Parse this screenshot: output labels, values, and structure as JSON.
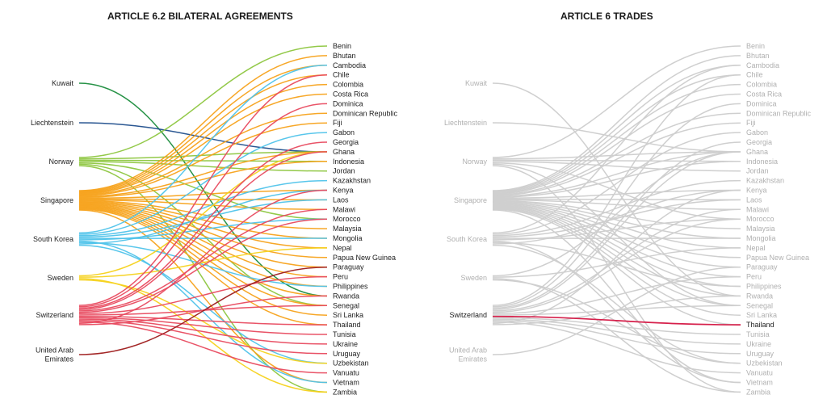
{
  "left_panel": {
    "title": "ARTICLE 6.2 BILATERAL AGREEMENTS"
  },
  "right_panel": {
    "title": "ARTICLE 6 TRADES",
    "highlight": {
      "source": "Switzerland",
      "destination": "Thailand",
      "color": "#d6204b"
    },
    "inactive_color": "#cfcfcf",
    "inactive_label_color": "#b0b0b0"
  },
  "sources": [
    {
      "name": "Kuwait",
      "lines": [
        "Kuwait"
      ],
      "color": "#1a8c3c"
    },
    {
      "name": "Liechtenstein",
      "lines": [
        "Liechtenstein"
      ],
      "color": "#1f4e8c"
    },
    {
      "name": "Norway",
      "lines": [
        "Norway"
      ],
      "color": "#8dc63f"
    },
    {
      "name": "Singapore",
      "lines": [
        "Singapore"
      ],
      "color": "#f7a21b"
    },
    {
      "name": "South Korea",
      "lines": [
        "South Korea"
      ],
      "color": "#4fc3ea"
    },
    {
      "name": "Sweden",
      "lines": [
        "Sweden"
      ],
      "color": "#f5d21c"
    },
    {
      "name": "Switzerland",
      "lines": [
        "Switzerland"
      ],
      "color": "#e84a5f"
    },
    {
      "name": "United Arab Emirates",
      "lines": [
        "United Arab",
        "Emirates"
      ],
      "color": "#9e1b1b"
    }
  ],
  "destinations": [
    "Benin",
    "Bhutan",
    "Cambodia",
    "Chile",
    "Colombia",
    "Costa Rica",
    "Dominica",
    "Dominican Republic",
    "Fiji",
    "Gabon",
    "Georgia",
    "Ghana",
    "Indonesia",
    "Jordan",
    "Kazakhstan",
    "Kenya",
    "Laos",
    "Malawi",
    "Morocco",
    "Malaysia",
    "Mongolia",
    "Nepal",
    "Papua New Guinea",
    "Paraguay",
    "Peru",
    "Philippines",
    "Rwanda",
    "Senegal",
    "Sri Lanka",
    "Thailand",
    "Tunisia",
    "Ukraine",
    "Uruguay",
    "Uzbekistan",
    "Vanuatu",
    "Vietnam",
    "Zambia"
  ],
  "agreements": {
    "Kuwait": [
      "Rwanda"
    ],
    "Liechtenstein": [
      "Ghana"
    ],
    "Norway": [
      "Benin",
      "Ghana",
      "Indonesia",
      "Jordan",
      "Morocco",
      "Senegal",
      "Zambia"
    ],
    "Singapore": [
      "Bhutan",
      "Cambodia",
      "Chile",
      "Colombia",
      "Costa Rica",
      "Dominican Republic",
      "Fiji",
      "Ghana",
      "Indonesia",
      "Kenya",
      "Laos",
      "Malawi",
      "Malaysia",
      "Mongolia",
      "Nepal",
      "Papua New Guinea",
      "Paraguay",
      "Peru",
      "Philippines",
      "Rwanda",
      "Senegal",
      "Sri Lanka",
      "Thailand",
      "Vietnam"
    ],
    "South Korea": [
      "Cambodia",
      "Gabon",
      "Kazakhstan",
      "Laos",
      "Mongolia",
      "Morocco",
      "Vietnam",
      "Philippines",
      "Kenya",
      "Uzbekistan"
    ],
    "Sweden": [
      "Ghana",
      "Nepal",
      "Zambia",
      "Uzbekistan"
    ],
    "Switzerland": [
      "Chile",
      "Dominica",
      "Georgia",
      "Ghana",
      "Malawi",
      "Morocco",
      "Peru",
      "Senegal",
      "Thailand",
      "Tunisia",
      "Ukraine",
      "Uruguay",
      "Vanuatu",
      "Kenya",
      "Rwanda"
    ],
    "United Arab Emirates": [
      "Paraguay"
    ]
  }
}
